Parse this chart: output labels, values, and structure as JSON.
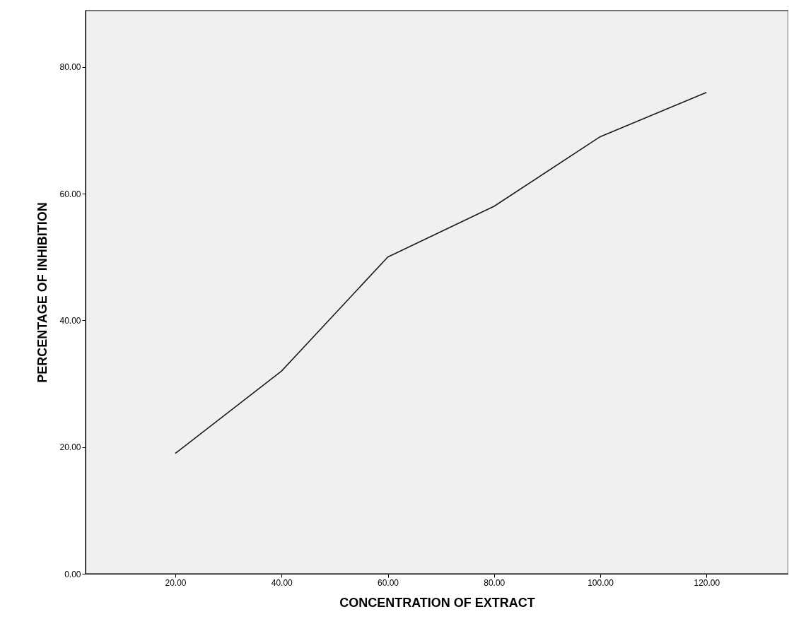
{
  "chart_data": {
    "type": "line",
    "xlabel": "CONCENTRATION OF EXTRACT",
    "ylabel": "PERCENTAGE OF INHIBITION",
    "x": [
      20,
      40,
      60,
      80,
      100,
      120
    ],
    "series": [
      {
        "color": "#1a1a1a",
        "values": [
          19,
          32,
          50,
          58,
          69,
          76
        ]
      }
    ],
    "xlim": [
      3.1,
      135.4
    ],
    "ylim": [
      0,
      88.9
    ],
    "xticks": [
      {
        "value": 20,
        "label": "20.00"
      },
      {
        "value": 40,
        "label": "40.00"
      },
      {
        "value": 60,
        "label": "60.00"
      },
      {
        "value": 80,
        "label": "80.00"
      },
      {
        "value": 100,
        "label": "100.00"
      },
      {
        "value": 120,
        "label": "120.00"
      }
    ],
    "yticks": [
      {
        "value": 0,
        "label": "0.00"
      },
      {
        "value": 20,
        "label": "20.00"
      },
      {
        "value": 40,
        "label": "40.00"
      },
      {
        "value": 60,
        "label": "60.00"
      },
      {
        "value": 80,
        "label": "80.00"
      }
    ],
    "grid": false,
    "marker": "none",
    "line_style": "solid"
  }
}
